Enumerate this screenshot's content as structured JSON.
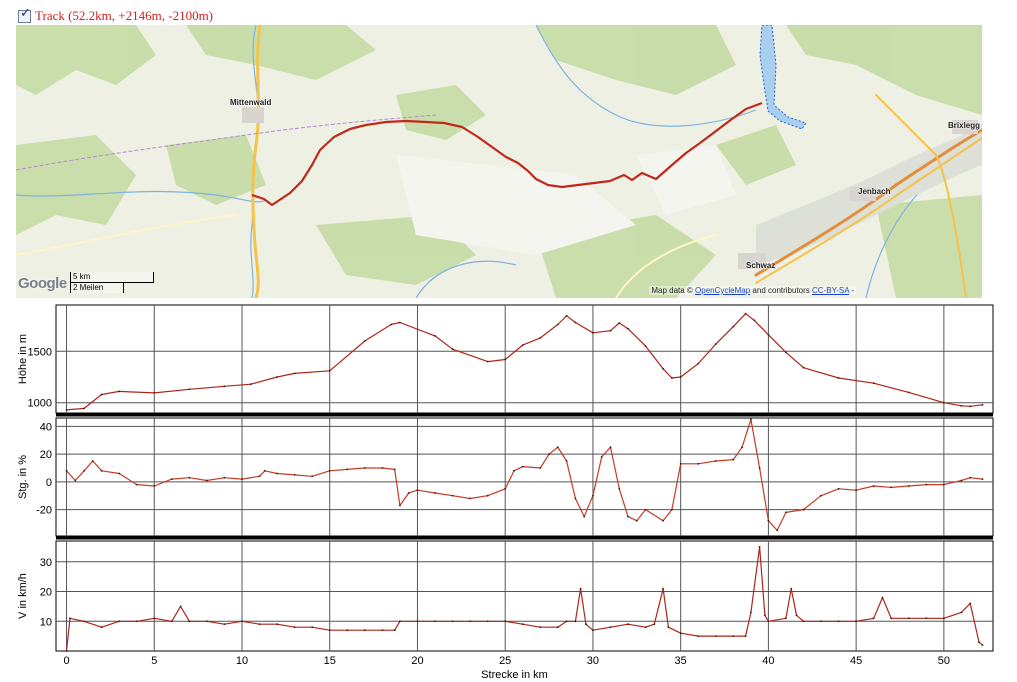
{
  "track_toggle": {
    "checked": true,
    "label": "Track (52.2km, +2146m, -2100m)"
  },
  "map": {
    "towns": [
      "Mittenwald",
      "Jenbach",
      "Schwaz",
      "Brixlegg"
    ],
    "logo": "Google",
    "scale_km": "5 km",
    "scale_mi": "2 Meilen",
    "attribution_prefix": "Map data ©",
    "attribution_link1": "OpenCycleMap",
    "attribution_mid": "and contributors",
    "attribution_link2": "CC-BY-SA",
    "attribution_suffix": "-",
    "colors": {
      "track": "#c0281c",
      "water": "#a8cff0",
      "forest": "#c6dca6",
      "land": "#eef0e4",
      "road": "#f5c24a"
    }
  },
  "chart_data": [
    {
      "type": "line",
      "ylabel": "Höhe in m",
      "yticks": [
        1000,
        1500
      ],
      "ylim": [
        900,
        1950
      ],
      "xlim": [
        -0.6,
        52.8
      ],
      "grid": true,
      "series": [
        {
          "values": [
            [
              0,
              930
            ],
            [
              1,
              945
            ],
            [
              2,
              1080
            ],
            [
              3,
              1110
            ],
            [
              5,
              1095
            ],
            [
              7,
              1130
            ],
            [
              9,
              1160
            ],
            [
              10.5,
              1180
            ],
            [
              12,
              1250
            ],
            [
              13,
              1285
            ],
            [
              15,
              1310
            ],
            [
              17,
              1600
            ],
            [
              18.5,
              1760
            ],
            [
              19,
              1780
            ],
            [
              21,
              1650
            ],
            [
              22,
              1520
            ],
            [
              24,
              1400
            ],
            [
              25,
              1420
            ],
            [
              26,
              1560
            ],
            [
              27,
              1630
            ],
            [
              28,
              1760
            ],
            [
              28.5,
              1845
            ],
            [
              29,
              1780
            ],
            [
              30,
              1680
            ],
            [
              31,
              1700
            ],
            [
              31.5,
              1775
            ],
            [
              32,
              1720
            ],
            [
              33,
              1550
            ],
            [
              34,
              1330
            ],
            [
              34.5,
              1240
            ],
            [
              35,
              1250
            ],
            [
              36,
              1380
            ],
            [
              37,
              1570
            ],
            [
              38,
              1740
            ],
            [
              38.7,
              1865
            ],
            [
              39.2,
              1800
            ],
            [
              40,
              1660
            ],
            [
              41,
              1490
            ],
            [
              42,
              1340
            ],
            [
              44,
              1240
            ],
            [
              46,
              1190
            ],
            [
              48,
              1100
            ],
            [
              50,
              1000
            ],
            [
              51,
              970
            ],
            [
              51.5,
              965
            ],
            [
              52.2,
              980
            ]
          ],
          "color": "#b02418"
        }
      ]
    },
    {
      "type": "line",
      "ylabel": "Stg. in %",
      "yticks": [
        -20,
        0,
        20,
        40
      ],
      "ylim": [
        -39,
        46
      ],
      "xlim": [
        -0.6,
        52.8
      ],
      "grid": true,
      "series": [
        {
          "values": [
            [
              0,
              8
            ],
            [
              0.5,
              1
            ],
            [
              1,
              8
            ],
            [
              1.5,
              15
            ],
            [
              2,
              8
            ],
            [
              3,
              6
            ],
            [
              4,
              -2
            ],
            [
              5,
              -3
            ],
            [
              6,
              2
            ],
            [
              7,
              3
            ],
            [
              8,
              1
            ],
            [
              9,
              3
            ],
            [
              10,
              2
            ],
            [
              11,
              4
            ],
            [
              11.3,
              8
            ],
            [
              12,
              6
            ],
            [
              13,
              5
            ],
            [
              14,
              4
            ],
            [
              15,
              8
            ],
            [
              16,
              9
            ],
            [
              17,
              10
            ],
            [
              18,
              10
            ],
            [
              18.7,
              9
            ],
            [
              19,
              -17
            ],
            [
              19.5,
              -8
            ],
            [
              20,
              -6
            ],
            [
              21,
              -8
            ],
            [
              22,
              -10
            ],
            [
              23,
              -12
            ],
            [
              24,
              -10
            ],
            [
              25,
              -5
            ],
            [
              25.5,
              8
            ],
            [
              26,
              11
            ],
            [
              27,
              10
            ],
            [
              27.5,
              20
            ],
            [
              28,
              25
            ],
            [
              28.5,
              15
            ],
            [
              29,
              -12
            ],
            [
              29.5,
              -25
            ],
            [
              30,
              -10
            ],
            [
              30.5,
              18
            ],
            [
              31,
              25
            ],
            [
              31.5,
              -5
            ],
            [
              32,
              -25
            ],
            [
              32.5,
              -28
            ],
            [
              33,
              -20
            ],
            [
              34,
              -28
            ],
            [
              34.5,
              -20
            ],
            [
              35,
              13
            ],
            [
              36,
              13
            ],
            [
              37,
              15
            ],
            [
              38,
              16
            ],
            [
              38.5,
              25
            ],
            [
              39,
              45
            ],
            [
              39.5,
              10
            ],
            [
              40,
              -28
            ],
            [
              40.5,
              -35
            ],
            [
              41,
              -22
            ],
            [
              42,
              -20
            ],
            [
              43,
              -10
            ],
            [
              44,
              -5
            ],
            [
              45,
              -6
            ],
            [
              46,
              -3
            ],
            [
              47,
              -4
            ],
            [
              48,
              -3
            ],
            [
              49,
              -2
            ],
            [
              50,
              -2
            ],
            [
              51,
              1
            ],
            [
              51.5,
              3
            ],
            [
              52.2,
              2
            ]
          ],
          "color": "#c73a24"
        }
      ]
    },
    {
      "type": "line",
      "ylabel": "V in km/h",
      "yticks": [
        10,
        20,
        30
      ],
      "ylim": [
        0,
        37
      ],
      "xlim": [
        -0.6,
        52.8
      ],
      "grid": true,
      "series": [
        {
          "values": [
            [
              0,
              0
            ],
            [
              0.2,
              11
            ],
            [
              1,
              10
            ],
            [
              2,
              8
            ],
            [
              3,
              10
            ],
            [
              4,
              10
            ],
            [
              5,
              11
            ],
            [
              6,
              10
            ],
            [
              6.5,
              15
            ],
            [
              7,
              10
            ],
            [
              8,
              10
            ],
            [
              9,
              9
            ],
            [
              10,
              10
            ],
            [
              11,
              9
            ],
            [
              12,
              9
            ],
            [
              13,
              8
            ],
            [
              14,
              8
            ],
            [
              15,
              7
            ],
            [
              16,
              7
            ],
            [
              17,
              7
            ],
            [
              18,
              7
            ],
            [
              18.7,
              7
            ],
            [
              19,
              10
            ],
            [
              20,
              10
            ],
            [
              21,
              10
            ],
            [
              22,
              10
            ],
            [
              23,
              10
            ],
            [
              24,
              10
            ],
            [
              25,
              10
            ],
            [
              26,
              9
            ],
            [
              27,
              8
            ],
            [
              28,
              8
            ],
            [
              28.5,
              10
            ],
            [
              29,
              10
            ],
            [
              29.3,
              21
            ],
            [
              29.6,
              9
            ],
            [
              30,
              7
            ],
            [
              31,
              8
            ],
            [
              32,
              9
            ],
            [
              33,
              8
            ],
            [
              33.5,
              9
            ],
            [
              34,
              21
            ],
            [
              34.3,
              8
            ],
            [
              35,
              6
            ],
            [
              36,
              5
            ],
            [
              37,
              5
            ],
            [
              38,
              5
            ],
            [
              38.7,
              5
            ],
            [
              39,
              13
            ],
            [
              39.5,
              35
            ],
            [
              39.8,
              12
            ],
            [
              40,
              10
            ],
            [
              41,
              11
            ],
            [
              41.3,
              21
            ],
            [
              41.6,
              12
            ],
            [
              42,
              10
            ],
            [
              43,
              10
            ],
            [
              44,
              10
            ],
            [
              45,
              10
            ],
            [
              46,
              11
            ],
            [
              46.5,
              18
            ],
            [
              47,
              11
            ],
            [
              48,
              11
            ],
            [
              49,
              11
            ],
            [
              50,
              11
            ],
            [
              51,
              13
            ],
            [
              51.5,
              16
            ],
            [
              52,
              3
            ],
            [
              52.2,
              2
            ]
          ],
          "color": "#b02418"
        }
      ]
    }
  ],
  "x_axis": {
    "ticks": [
      0,
      5,
      10,
      15,
      20,
      25,
      30,
      35,
      40,
      45,
      50
    ],
    "label": "Strecke in km"
  }
}
